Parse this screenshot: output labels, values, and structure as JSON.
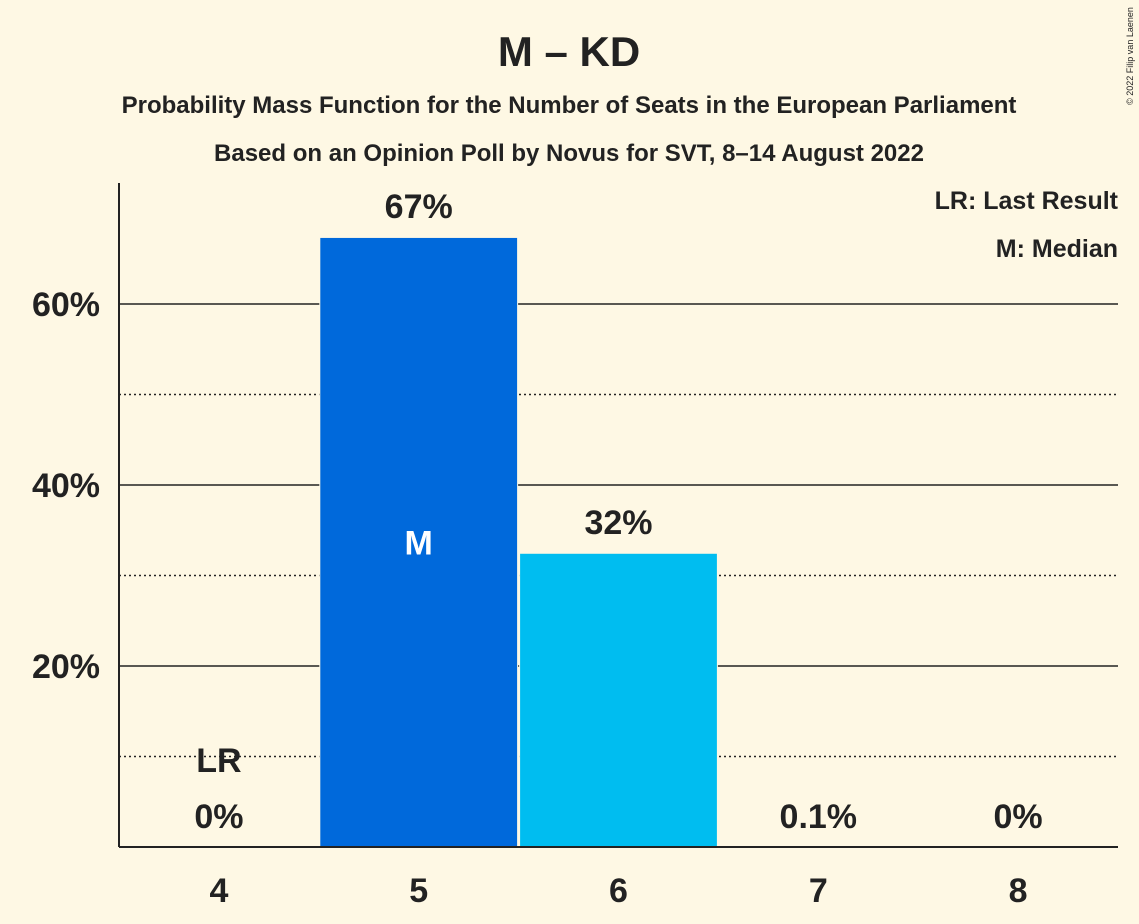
{
  "chart_data": {
    "type": "bar",
    "title": "M – KD",
    "subtitle_1": "Probability Mass Function for the Number of Seats in the European Parliament",
    "subtitle_2": "Based on an Opinion Poll by Novus for SVT, 8–14 August 2022",
    "copyright": "© 2022 Filip van Laenen",
    "legend": [
      "LR: Last Result",
      "M: Median"
    ],
    "legend_position": "top-right",
    "categories": [
      "4",
      "5",
      "6",
      "7",
      "8"
    ],
    "values": [
      0,
      67.3,
      32.4,
      0.1,
      0
    ],
    "data_labels": [
      "0%",
      "67%",
      "32%",
      "0.1%",
      "0%"
    ],
    "bar_colors": [
      "#0069db",
      "#0069db",
      "#00bdf0",
      "#00bdf0",
      "#00bdf0"
    ],
    "median_category": "5",
    "median_marker": "M",
    "last_result_category": "4",
    "last_result_marker": "LR",
    "ylim": [
      0,
      73
    ],
    "yticks_major": [
      20,
      40,
      60
    ],
    "ytick_labels": [
      "20%",
      "40%",
      "60%"
    ],
    "yticks_minor": [
      10,
      30,
      50
    ],
    "grid": true,
    "background": "#fef8e4"
  }
}
